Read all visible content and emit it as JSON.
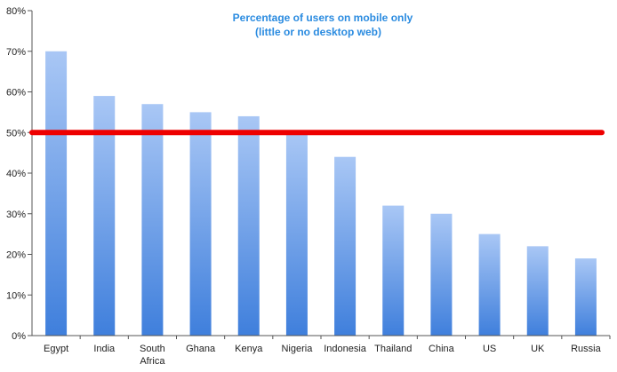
{
  "chart_data": {
    "type": "bar",
    "title": "Percentage of users on mobile only",
    "subtitle": "(little or no desktop web)",
    "categories": [
      "Egypt",
      "India",
      "South Africa",
      "Ghana",
      "Kenya",
      "Nigeria",
      "Indonesia",
      "Thailand",
      "China",
      "US",
      "UK",
      "Russia"
    ],
    "category_lines": [
      [
        "Egypt"
      ],
      [
        "India"
      ],
      [
        "South",
        "Africa"
      ],
      [
        "Ghana"
      ],
      [
        "Kenya"
      ],
      [
        "Nigeria"
      ],
      [
        "Indonesia"
      ],
      [
        "Thailand"
      ],
      [
        "China"
      ],
      [
        "US"
      ],
      [
        "UK"
      ],
      [
        "Russia"
      ]
    ],
    "values": [
      70,
      59,
      57,
      55,
      54,
      50,
      44,
      32,
      30,
      25,
      22,
      19
    ],
    "ylim": [
      0,
      80
    ],
    "ytick_labels": [
      "0%",
      "10%",
      "20%",
      "30%",
      "40%",
      "50%",
      "60%",
      "70%",
      "80%"
    ],
    "yticks": [
      0,
      10,
      20,
      30,
      40,
      50,
      60,
      70,
      80
    ],
    "reference_line": {
      "value": 50,
      "color": "#ee0000"
    },
    "bar_color_top": "#a9c7f5",
    "bar_color_bottom": "#3f7fdc",
    "grid": false,
    "legend": "none"
  }
}
